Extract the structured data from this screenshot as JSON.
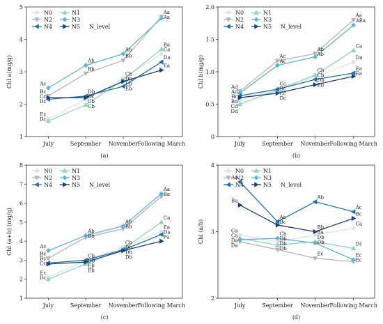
{
  "series_styles": [
    {
      "name": "N0",
      "color": "#d8e6e6",
      "marker": "circle"
    },
    {
      "name": "N1",
      "color": "#8fd3c4",
      "marker": "triangle"
    },
    {
      "name": "N2",
      "color": "#b3b3b8",
      "marker": "triangle-down"
    },
    {
      "name": "N3",
      "color": "#5fb4d8",
      "marker": "diamond"
    },
    {
      "name": "N4",
      "color": "#1f6faa",
      "marker": "triangle-left"
    },
    {
      "name": "N5",
      "color": "#1b3f7a",
      "marker": "triangle-right"
    }
  ],
  "legend_title": "N_level",
  "chart_data": [
    {
      "panel": "(a)",
      "type": "line",
      "ylabel": "Chl a(mg/g)",
      "ylim": [
        1,
        5
      ],
      "yticks": [
        1,
        2,
        3,
        4,
        5
      ],
      "categories": [
        "July",
        "September",
        "November",
        "Following March"
      ],
      "legend_position": "top-left",
      "series": [
        {
          "name": "N0",
          "values": [
            1.55,
            2.15,
            2.8,
            3.55
          ],
          "labels": [
            "Ec",
            "Cb",
            "Cb",
            "Ca"
          ]
        },
        {
          "name": "N1",
          "values": [
            1.48,
            1.98,
            2.75,
            3.7
          ],
          "labels": [
            "Dc",
            "Cb",
            "Db",
            "Ba"
          ]
        },
        {
          "name": "N2",
          "values": [
            2.25,
            2.95,
            3.35,
            4.7
          ],
          "labels": [
            "Bc",
            "Bb",
            "Bb",
            "Aa"
          ]
        },
        {
          "name": "N3",
          "values": [
            2.5,
            3.2,
            3.55,
            4.65
          ],
          "labels": [
            "Ac",
            "Ab",
            "Ab",
            "Aa"
          ]
        },
        {
          "name": "N4",
          "values": [
            2.15,
            2.25,
            2.55,
            3.3
          ],
          "labels": [
            "Dc",
            "Db",
            "Eb",
            "Da"
          ]
        },
        {
          "name": "N5",
          "values": [
            2.2,
            2.2,
            2.7,
            3.05
          ],
          "labels": [
            "Cc",
            "Dc",
            "Eb",
            "Ea"
          ]
        }
      ]
    },
    {
      "panel": "(b)",
      "type": "line",
      "ylabel": "Chl b(mg/g)",
      "ylim": [
        0,
        2
      ],
      "yticks": [
        0.0,
        0.5,
        1.0,
        1.5,
        2.0
      ],
      "ytick_labels": [
        "0",
        "0.5",
        "1.0",
        "1.5",
        "2.0"
      ],
      "categories": [
        "July",
        "September",
        "November",
        "Following March"
      ],
      "legend_position": "top-left",
      "series": [
        {
          "name": "N0",
          "values": [
            0.55,
            0.75,
            0.92,
            1.15
          ],
          "labels": [
            "Cd",
            "Cc",
            "Cb",
            "Da"
          ]
        },
        {
          "name": "N1",
          "values": [
            0.5,
            0.72,
            0.95,
            1.33
          ],
          "labels": [
            "Dd",
            "Cc",
            "Cb",
            "Ca"
          ]
        },
        {
          "name": "N2",
          "values": [
            0.7,
            1.17,
            1.28,
            1.8
          ],
          "labels": [
            "Ad",
            "Ac",
            "Ab",
            "Aa"
          ]
        },
        {
          "name": "N3",
          "values": [
            0.67,
            1.1,
            1.23,
            1.72
          ],
          "labels": [
            "Ad",
            "Ac",
            "Ab",
            "ABa"
          ]
        },
        {
          "name": "N4",
          "values": [
            0.63,
            0.73,
            0.88,
            0.98
          ],
          "labels": [
            "Bc",
            "Bc",
            "Db",
            "Ea"
          ]
        },
        {
          "name": "N5",
          "values": [
            0.6,
            0.67,
            0.8,
            0.93
          ],
          "labels": [
            "Bd",
            "Dc",
            "Eb",
            "Ea"
          ]
        }
      ]
    },
    {
      "panel": "(c)",
      "type": "line",
      "ylabel": "Chl (a+b) (mg/g)",
      "ylim": [
        1,
        8
      ],
      "yticks": [
        1,
        2,
        3,
        4,
        5,
        6,
        7,
        8
      ],
      "categories": [
        "July",
        "September",
        "November",
        "Following March"
      ],
      "legend_position": "top-left",
      "series": [
        {
          "name": "N0",
          "values": [
            2.1,
            3.0,
            3.7,
            4.5
          ],
          "labels": [
            "Ec",
            "Cb",
            "Cb",
            "Ea"
          ]
        },
        {
          "name": "N1",
          "values": [
            2.0,
            2.8,
            3.6,
            5.0
          ],
          "labels": [
            "Dc",
            "Eb",
            "Db",
            "Ca"
          ]
        },
        {
          "name": "N2",
          "values": [
            3.1,
            4.2,
            4.65,
            6.35
          ],
          "labels": [
            "Bc",
            "Bb",
            "Bb",
            "Ba"
          ]
        },
        {
          "name": "N3",
          "values": [
            3.5,
            4.3,
            4.8,
            6.5
          ],
          "labels": [
            "Ac",
            "Ab",
            "Ab",
            "Aa"
          ]
        },
        {
          "name": "N4",
          "values": [
            2.85,
            3.0,
            3.55,
            4.35
          ],
          "labels": [
            "Bc",
            "Db",
            "Db",
            "Da"
          ]
        },
        {
          "name": "N5",
          "values": [
            2.8,
            2.9,
            3.5,
            4.0
          ],
          "labels": [
            "Cc",
            "Eb",
            "Db",
            "Fa"
          ]
        }
      ]
    },
    {
      "panel": "(d)",
      "type": "line",
      "ylabel": "Chl (a/b)",
      "ylim": [
        2,
        4
      ],
      "yticks": [
        2,
        3,
        4
      ],
      "categories": [
        "July",
        "September",
        "November",
        "Following March"
      ],
      "legend_position": "top-left",
      "series": [
        {
          "name": "N0",
          "values": [
            2.95,
            2.85,
            2.95,
            3.05
          ],
          "labels": [
            "Ca",
            "Db",
            "Ba",
            "Ca"
          ]
        },
        {
          "name": "N1",
          "values": [
            2.9,
            2.8,
            2.85,
            2.75
          ],
          "labels": [
            "Ca",
            "Db",
            "Db",
            "Dc"
          ]
        },
        {
          "name": "N2",
          "values": [
            2.85,
            2.73,
            2.6,
            2.55
          ],
          "labels": [
            "Da",
            "Db",
            "Ec",
            "Ec"
          ]
        },
        {
          "name": "N3",
          "values": [
            2.88,
            2.9,
            2.83,
            2.58
          ],
          "labels": [
            "Da",
            "Cb",
            "Db",
            "Ec"
          ]
        },
        {
          "name": "N4",
          "values": [
            3.75,
            3.15,
            3.45,
            3.3
          ],
          "labels": [
            "Aa",
            "Ac",
            "Ab",
            "Ac"
          ]
        },
        {
          "name": "N5",
          "values": [
            3.4,
            3.1,
            3.0,
            3.2
          ],
          "labels": [
            "Ba",
            "Bc",
            "Bb",
            "Bc"
          ]
        }
      ]
    }
  ]
}
